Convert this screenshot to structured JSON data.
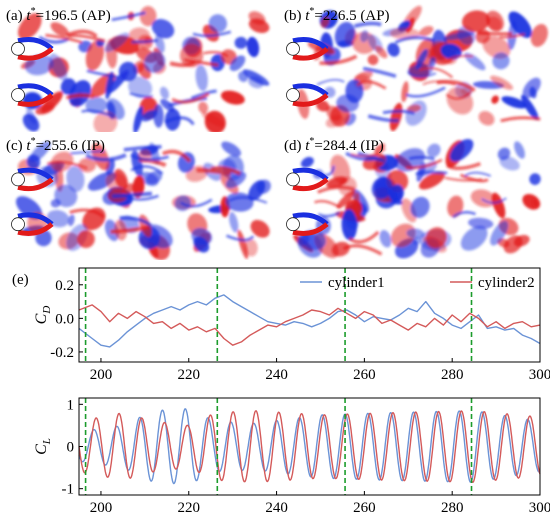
{
  "panels": [
    {
      "letter": "(a)",
      "time": "196.5",
      "phase": "(AP)"
    },
    {
      "letter": "(b)",
      "time": "226.5",
      "phase": "(AP)"
    },
    {
      "letter": "(c)",
      "time": "255.6",
      "phase": "(IP)"
    },
    {
      "letter": "(d)",
      "time": "284.4",
      "phase": "(IP)"
    }
  ],
  "colors": {
    "positive_vorticity": "#e21a1a",
    "negative_vorticity": "#1a2fe0",
    "cylinder1": "#6b93d6",
    "cylinder2": "#d45a5a",
    "marker": "#1c9c2c"
  },
  "chart_data": [
    {
      "type": "line",
      "panel_label": "(e)",
      "ylabel_main": "C",
      "ylabel_sub": "D",
      "xlim": [
        195,
        300
      ],
      "ylim": [
        -0.26,
        0.3
      ],
      "xticks": [
        200,
        220,
        240,
        260,
        280,
        300
      ],
      "yticks": [
        -0.2,
        0.0,
        0.2
      ],
      "ytick_labels": [
        "-0.2",
        "0.0",
        "0.2"
      ],
      "vlines": [
        196.5,
        226.5,
        255.6,
        284.4
      ],
      "legend": "top-right",
      "series": [
        {
          "name": "cylinder1",
          "x": [
            195,
            198,
            200,
            202,
            204,
            206,
            208,
            210,
            212,
            214,
            216,
            218,
            220,
            222,
            224,
            226,
            228,
            230,
            232,
            234,
            236,
            238,
            240,
            242,
            244,
            246,
            248,
            250,
            252,
            254,
            256,
            258,
            260,
            262,
            264,
            266,
            268,
            270,
            272,
            274,
            276,
            278,
            280,
            282,
            284,
            286,
            288,
            290,
            292,
            294,
            296,
            298,
            300
          ],
          "y": [
            -0.06,
            -0.12,
            -0.16,
            -0.17,
            -0.13,
            -0.08,
            -0.04,
            0.0,
            0.03,
            0.05,
            0.07,
            0.05,
            0.08,
            0.1,
            0.08,
            0.12,
            0.14,
            0.1,
            0.07,
            0.04,
            0.01,
            -0.02,
            -0.03,
            -0.04,
            -0.02,
            -0.03,
            -0.05,
            -0.03,
            0.0,
            0.04,
            0.05,
            0.02,
            -0.02,
            0.01,
            0.0,
            -0.01,
            0.02,
            0.06,
            0.04,
            0.1,
            0.03,
            0.0,
            -0.04,
            -0.06,
            -0.02,
            0.02,
            -0.06,
            -0.05,
            -0.07,
            -0.06,
            -0.1,
            -0.12,
            -0.15
          ]
        },
        {
          "name": "cylinder2",
          "x": [
            195,
            198,
            200,
            202,
            204,
            206,
            208,
            210,
            212,
            214,
            216,
            218,
            220,
            222,
            224,
            226,
            228,
            230,
            232,
            234,
            236,
            238,
            240,
            242,
            244,
            246,
            248,
            250,
            252,
            254,
            256,
            258,
            260,
            262,
            264,
            266,
            268,
            270,
            272,
            274,
            276,
            278,
            280,
            282,
            284,
            286,
            288,
            290,
            292,
            294,
            296,
            298,
            300
          ],
          "y": [
            0.05,
            0.08,
            0.04,
            -0.02,
            0.03,
            0.0,
            0.04,
            0.01,
            -0.03,
            -0.02,
            -0.06,
            -0.03,
            -0.07,
            -0.05,
            -0.08,
            -0.06,
            -0.12,
            -0.16,
            -0.14,
            -0.1,
            -0.07,
            -0.04,
            -0.05,
            -0.02,
            0.0,
            0.02,
            0.05,
            0.04,
            0.02,
            0.06,
            0.03,
            0.0,
            0.04,
            0.02,
            -0.03,
            -0.01,
            -0.04,
            -0.07,
            -0.03,
            -0.05,
            0.0,
            -0.04,
            0.02,
            -0.02,
            0.03,
            0.0,
            -0.05,
            -0.02,
            -0.06,
            -0.03,
            -0.02,
            -0.05,
            -0.04
          ]
        }
      ]
    },
    {
      "type": "line",
      "ylabel_main": "C",
      "ylabel_sub": "L",
      "xlim": [
        195,
        300
      ],
      "ylim": [
        -1.15,
        1.15
      ],
      "xticks": [
        200,
        220,
        240,
        260,
        280,
        300
      ],
      "yticks": [
        -1,
        0,
        1
      ],
      "ytick_labels": [
        "-1",
        "0",
        "1"
      ],
      "vlines": [
        196.5,
        226.5,
        255.6,
        284.4
      ],
      "series": [
        {
          "name": "cylinder1",
          "period": 5.2,
          "phase": 0.6,
          "amplitude_envelope": [
            [
              195,
              0.35
            ],
            [
              205,
              0.5
            ],
            [
              212,
              0.85
            ],
            [
              220,
              0.9
            ],
            [
              226,
              0.6
            ],
            [
              235,
              0.55
            ],
            [
              250,
              0.75
            ],
            [
              265,
              0.8
            ],
            [
              285,
              0.85
            ],
            [
              300,
              0.6
            ]
          ]
        },
        {
          "name": "cylinder2",
          "period": 5.2,
          "phase": 0.0,
          "amplitude_envelope": [
            [
              195,
              0.6
            ],
            [
              205,
              0.8
            ],
            [
              212,
              0.6
            ],
            [
              220,
              0.5
            ],
            [
              226,
              0.8
            ],
            [
              235,
              0.85
            ],
            [
              250,
              0.75
            ],
            [
              265,
              0.8
            ],
            [
              285,
              0.85
            ],
            [
              300,
              0.7
            ]
          ]
        }
      ]
    }
  ]
}
